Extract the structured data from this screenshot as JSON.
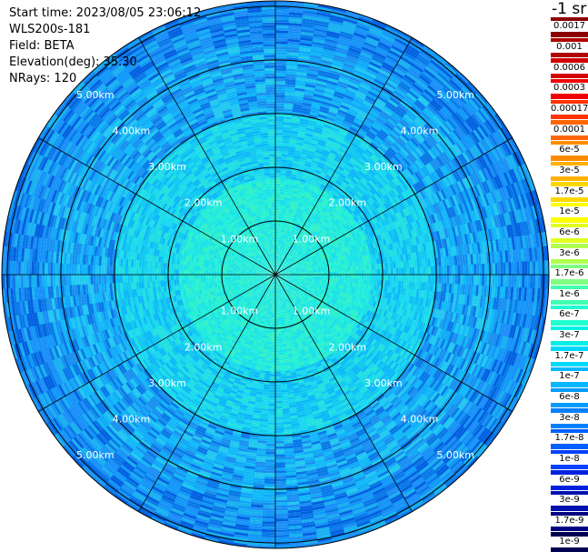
{
  "info": {
    "start_time": "Start time: 2023/08/05 23:06:12",
    "device": "WLS200s-181",
    "field": "Field: BETA",
    "elevation": "Elevation(deg): 35.30",
    "nrays": "NRays: 120"
  },
  "units": "-1 sr",
  "chart_data": {
    "type": "heatmap",
    "projection": "polar-ppi",
    "field": "BETA",
    "elevation_deg": 35.3,
    "nrays": 120,
    "range_rings_km": [
      1,
      2,
      3,
      4,
      5
    ],
    "max_range_km": 5.1,
    "ring_labels": [
      "1.00km",
      "2.00km",
      "3.00km",
      "4.00km",
      "5.00km"
    ],
    "spoke_angles_deg": [
      0,
      30,
      60,
      90,
      120,
      150,
      180,
      210,
      240,
      270,
      300,
      330
    ],
    "colorbar": {
      "scale": "log",
      "unit": "-1 sr",
      "levels": [
        {
          "label": "0.0017",
          "color": "#8b0000"
        },
        {
          "label": "0.001",
          "color": "#b00000"
        },
        {
          "label": "0.0006",
          "color": "#d10000"
        },
        {
          "label": "0.0003",
          "color": "#f00000"
        },
        {
          "label": "0.00017",
          "color": "#ff3300"
        },
        {
          "label": "0.0001",
          "color": "#ff6600"
        },
        {
          "label": "6e-5",
          "color": "#ff8c00"
        },
        {
          "label": "3e-5",
          "color": "#ffb000"
        },
        {
          "label": "1.7e-5",
          "color": "#ffd700"
        },
        {
          "label": "1e-5",
          "color": "#ffff00"
        },
        {
          "label": "6e-6",
          "color": "#e0ff20"
        },
        {
          "label": "3e-6",
          "color": "#b0ff50"
        },
        {
          "label": "1.7e-6",
          "color": "#80ff80"
        },
        {
          "label": "1e-6",
          "color": "#40ffb0"
        },
        {
          "label": "6e-7",
          "color": "#20ffd0"
        },
        {
          "label": "3e-7",
          "color": "#00f0e8"
        },
        {
          "label": "1.7e-7",
          "color": "#00d8f8"
        },
        {
          "label": "1e-7",
          "color": "#00b8ff"
        },
        {
          "label": "6e-8",
          "color": "#009cff"
        },
        {
          "label": "3e-8",
          "color": "#0080ff"
        },
        {
          "label": "1.7e-8",
          "color": "#0060ff"
        },
        {
          "label": "1e-8",
          "color": "#0040ff"
        },
        {
          "label": "6e-9",
          "color": "#0020e0"
        },
        {
          "label": "3e-9",
          "color": "#0010b0"
        },
        {
          "label": "1.7e-9",
          "color": "#000080"
        },
        {
          "label": "1e-9",
          "color": "#000050"
        }
      ]
    }
  }
}
